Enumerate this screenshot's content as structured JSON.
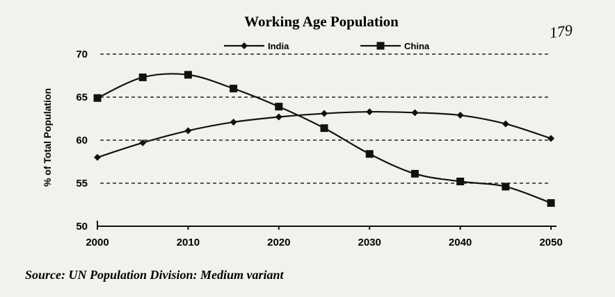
{
  "chart_data": {
    "type": "line",
    "title": "Working Age Population",
    "ylabel": "% of Total Population",
    "xlabel": "",
    "x": [
      2000,
      2005,
      2010,
      2015,
      2020,
      2025,
      2030,
      2035,
      2040,
      2045,
      2050
    ],
    "x_ticks": [
      "2000",
      "2010",
      "2020",
      "2030",
      "2040",
      "2050"
    ],
    "y_ticks": [
      "50",
      "55",
      "60",
      "65",
      "70"
    ],
    "ylim": [
      50,
      70
    ],
    "grid": "horizontal dashed",
    "legend_position": "top",
    "series": [
      {
        "name": "India",
        "marker": "diamond",
        "values": [
          58.0,
          59.7,
          61.1,
          62.1,
          62.7,
          63.1,
          63.3,
          63.2,
          62.9,
          61.9,
          60.2
        ]
      },
      {
        "name": "China",
        "marker": "square",
        "values": [
          64.9,
          67.3,
          67.6,
          66.0,
          63.9,
          61.4,
          58.4,
          56.1,
          55.2,
          54.6,
          52.7
        ]
      }
    ]
  },
  "source": "Source: UN Population Division: Medium variant",
  "annotation": "179"
}
